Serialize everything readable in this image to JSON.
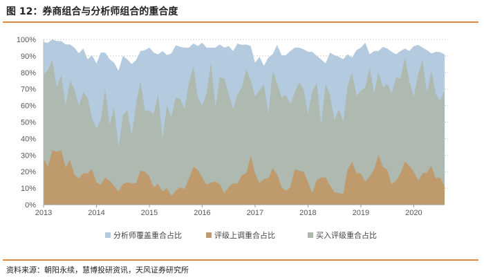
{
  "title": "图 12：券商组合与分析师组合的重合度",
  "source": "资料来源：朝阳永续，慧博投研资讯，天风证券研究所",
  "colors": {
    "accent": "#e8833a",
    "coverage": "#b4cadf",
    "rating_up": "#bf9a6c",
    "buy": "#aebaaf"
  },
  "chart_data": {
    "type": "area",
    "title": "",
    "xlabel": "",
    "ylabel": "",
    "x_start": "2013-01",
    "x_frequency": "monthly",
    "x_tick_labels": [
      "2013",
      "2014",
      "2015",
      "2016",
      "2017",
      "2018",
      "2019",
      "2020"
    ],
    "y_tick_labels": [
      "0%",
      "10%",
      "20%",
      "30%",
      "40%",
      "50%",
      "60%",
      "70%",
      "80%",
      "90%",
      "100%"
    ],
    "ylim": [
      0,
      100
    ],
    "grid": "horizontal dotted",
    "legend_position": "bottom",
    "series": [
      {
        "name": "分析师覆盖重合占比",
        "color": "#b4cadf",
        "values": [
          98.3,
          98,
          100,
          99,
          99,
          97,
          97,
          95,
          91.5,
          94.5,
          88,
          90.5,
          85.5,
          92,
          92,
          88,
          86,
          81,
          90,
          88,
          85,
          87.5,
          93,
          93.5,
          95,
          92,
          91,
          93,
          90.5,
          91.5,
          96.5,
          95.5,
          95,
          95,
          97.5,
          96,
          98,
          95,
          95,
          95,
          97,
          95,
          96,
          93,
          97.5,
          96.7,
          97,
          96,
          86,
          89.5,
          84,
          89,
          91,
          96.7,
          90.5,
          90.5,
          93,
          95,
          95,
          94,
          92.5,
          92.5,
          90,
          88,
          85.5,
          92,
          90.5,
          89.5,
          88,
          91,
          89,
          93.5,
          95,
          98,
          91,
          93,
          93,
          95.5,
          94.5,
          92.5,
          91,
          93,
          94.5,
          93,
          96,
          96.7,
          95,
          93.5,
          91.5,
          92.5,
          92.3,
          91
        ]
      },
      {
        "name": "评级上调重合占比",
        "color": "#bf9a6c",
        "values": [
          28,
          23,
          33,
          32,
          33,
          22.5,
          27,
          18,
          16,
          19,
          19,
          21.5,
          13.5,
          12,
          16.5,
          14.5,
          11.5,
          8,
          12.5,
          13.5,
          13,
          13,
          20.5,
          20,
          17,
          10.5,
          12.5,
          8,
          10,
          5.5,
          8.5,
          10.5,
          9.5,
          16,
          23,
          21,
          16.5,
          12,
          13.5,
          14,
          12.5,
          7,
          10.5,
          13,
          12.5,
          18,
          19,
          29.5,
          19,
          13,
          15.5,
          16,
          22,
          18.5,
          10.5,
          8.5,
          10.5,
          21.5,
          20.5,
          20,
          13.5,
          7,
          15,
          16.5,
          16.5,
          11.5,
          7.5,
          7,
          6.5,
          21.5,
          26,
          19,
          19,
          14,
          17,
          21.5,
          30,
          23,
          21,
          12.5,
          14.5,
          19,
          26,
          23.5,
          20,
          14.5,
          19,
          19.5,
          23.5,
          16,
          16.5,
          11
        ]
      },
      {
        "name": "买入评级重合占比",
        "color": "#aebaaf",
        "values": [
          79,
          81.5,
          87.5,
          71,
          78.5,
          60,
          75,
          70,
          60,
          68,
          65,
          52,
          46,
          51.5,
          70,
          48.5,
          59,
          34.5,
          54,
          57.5,
          42,
          61,
          74.5,
          57,
          57,
          55,
          67,
          40,
          60,
          53,
          65,
          64,
          58,
          74,
          83.5,
          65,
          60,
          67.5,
          86,
          59,
          77,
          76.5,
          67,
          58,
          66.5,
          71,
          82,
          75.5,
          65.5,
          69,
          73,
          55,
          81,
          73.5,
          65,
          66.5,
          61,
          68,
          74,
          70,
          55,
          69,
          73.5,
          48.5,
          73,
          66.5,
          51,
          58,
          50.5,
          72,
          80,
          66,
          69,
          71,
          83,
          67.5,
          80,
          71,
          73,
          67.5,
          77,
          76.5,
          89,
          75,
          65,
          79,
          87.5,
          67.5,
          81,
          67,
          63,
          69
        ]
      }
    ]
  }
}
